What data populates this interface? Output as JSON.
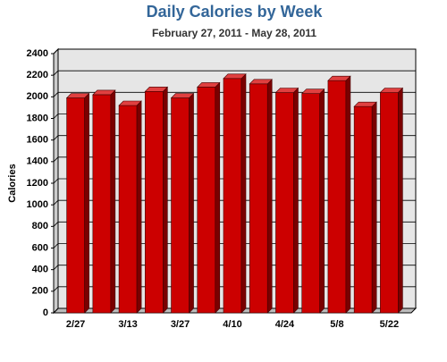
{
  "chart_data": {
    "type": "bar3d",
    "title": "Daily Calories by Week",
    "subtitle": "February 27, 2011 - May 28, 2011",
    "y_label": "Calories",
    "categories": [
      "2/27",
      null,
      "3/13",
      null,
      "3/27",
      null,
      "4/10",
      null,
      "4/24",
      null,
      "5/8",
      null,
      "5/22"
    ],
    "values": [
      1990,
      2020,
      1920,
      2050,
      1990,
      2090,
      2170,
      2120,
      2040,
      2030,
      2150,
      1910,
      2040
    ],
    "color": "#cc0000",
    "ylim": [
      0,
      2400
    ],
    "yticks": [
      0,
      200,
      400,
      600,
      800,
      1000,
      1200,
      1400,
      1600,
      1800,
      2000,
      2200,
      2400
    ],
    "grid": true
  }
}
